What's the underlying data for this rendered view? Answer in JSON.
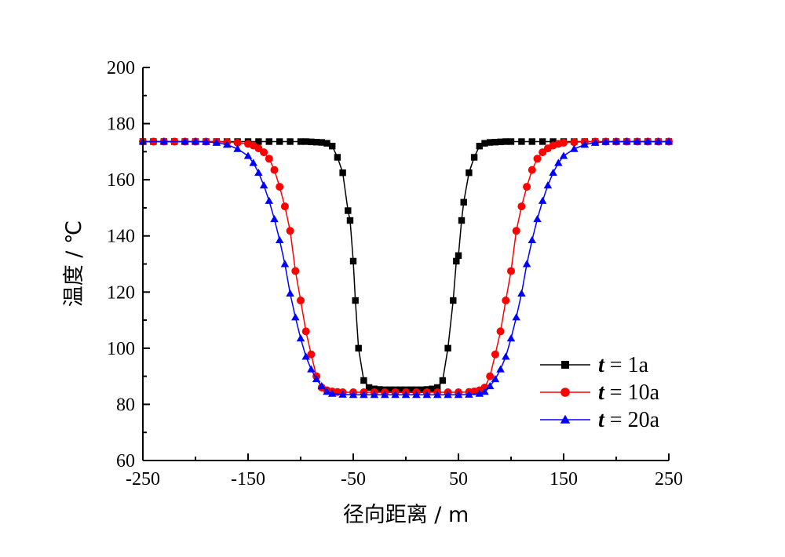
{
  "chart_data": {
    "type": "line",
    "title": "",
    "xlabel": "径向距离 / m",
    "ylabel": "温度 / ℃",
    "xlim": [
      -250,
      250
    ],
    "ylim": [
      60,
      200
    ],
    "xticks": [
      -250,
      -150,
      -50,
      50,
      150,
      250
    ],
    "xtick_labels": [
      "-250",
      "-150",
      "-50",
      "50",
      "150",
      "250"
    ],
    "yticks": [
      60,
      80,
      100,
      120,
      140,
      160,
      180,
      200
    ],
    "ytick_labels": [
      "60",
      "80",
      "100",
      "120",
      "140",
      "160",
      "180",
      "200"
    ],
    "x_minor_step": 50,
    "y_minor_step": 10,
    "grid": false,
    "legend_position": "right",
    "series": [
      {
        "name_var": "t",
        "name_rest": " = 1a",
        "color": "#000000",
        "marker": "square",
        "x": [
          -250,
          -240,
          -230,
          -220,
          -210,
          -200,
          -190,
          -180,
          -170,
          -160,
          -150,
          -140,
          -130,
          -120,
          -110,
          -100,
          -95,
          -90,
          -85,
          -80,
          -75,
          -70,
          -65,
          -60,
          -55,
          -53,
          -50,
          -48,
          -45,
          -40,
          -35,
          -30,
          -25,
          -20,
          -15,
          -10,
          -5,
          0,
          5,
          10,
          15,
          20,
          25,
          30,
          35,
          40,
          45,
          48,
          50,
          53,
          55,
          60,
          65,
          70,
          75,
          80,
          85,
          90,
          95,
          100,
          110,
          120,
          130,
          140,
          150,
          160,
          170,
          180,
          190,
          200,
          210,
          220,
          230,
          240,
          250
        ],
        "y": [
          173.6,
          173.6,
          173.6,
          173.6,
          173.6,
          173.6,
          173.6,
          173.6,
          173.6,
          173.6,
          173.6,
          173.6,
          173.6,
          173.6,
          173.6,
          173.6,
          173.6,
          173.5,
          173.4,
          173.3,
          173.0,
          172.0,
          168.0,
          162.5,
          149.0,
          145.5,
          131.0,
          117.0,
          100.0,
          88.5,
          86.0,
          85.5,
          85.3,
          85.2,
          85.2,
          85.2,
          85.2,
          85.2,
          85.2,
          85.2,
          85.2,
          85.3,
          85.5,
          86.0,
          88.5,
          100.0,
          117.0,
          131.0,
          133.0,
          145.5,
          152.0,
          162.5,
          168.0,
          172.0,
          173.0,
          173.3,
          173.4,
          173.5,
          173.6,
          173.6,
          173.6,
          173.6,
          173.6,
          173.6,
          173.6,
          173.6,
          173.6,
          173.6,
          173.6,
          173.6,
          173.6,
          173.6,
          173.6,
          173.6,
          173.6
        ]
      },
      {
        "name_var": "t",
        "name_rest": " = 10a",
        "color": "#ff0000",
        "marker": "circle",
        "x": [
          -250,
          -240,
          -230,
          -220,
          -210,
          -200,
          -190,
          -180,
          -170,
          -160,
          -150,
          -145,
          -140,
          -135,
          -130,
          -125,
          -120,
          -115,
          -110,
          -105,
          -100,
          -95,
          -90,
          -85,
          -80,
          -75,
          -70,
          -65,
          -60,
          -50,
          -40,
          -30,
          -20,
          -10,
          0,
          10,
          20,
          30,
          40,
          50,
          60,
          65,
          70,
          75,
          80,
          85,
          90,
          95,
          100,
          105,
          110,
          115,
          120,
          125,
          130,
          135,
          140,
          145,
          150,
          160,
          170,
          180,
          190,
          200,
          210,
          220,
          230,
          240,
          250
        ],
        "y": [
          173.6,
          173.6,
          173.6,
          173.6,
          173.6,
          173.6,
          173.6,
          173.5,
          173.4,
          173.2,
          172.8,
          172.2,
          171.2,
          169.8,
          167.5,
          163.5,
          157.5,
          150.5,
          141.8,
          127.5,
          117.0,
          106.0,
          97.8,
          90.0,
          86.0,
          85.0,
          84.6,
          84.4,
          84.3,
          84.3,
          84.3,
          84.3,
          84.3,
          84.3,
          84.3,
          84.3,
          84.3,
          84.3,
          84.3,
          84.3,
          84.4,
          84.6,
          85.0,
          86.0,
          90.0,
          97.8,
          106.0,
          117.0,
          127.5,
          141.8,
          150.5,
          157.5,
          163.5,
          167.5,
          169.8,
          171.2,
          172.2,
          172.8,
          173.2,
          173.4,
          173.5,
          173.6,
          173.6,
          173.6,
          173.6,
          173.6,
          173.6,
          173.6,
          173.6
        ]
      },
      {
        "name_var": "t",
        "name_rest": " = 20a",
        "color": "#0000ff",
        "marker": "triangle",
        "x": [
          -250,
          -230,
          -210,
          -200,
          -190,
          -180,
          -170,
          -160,
          -150,
          -145,
          -140,
          -135,
          -130,
          -125,
          -120,
          -115,
          -110,
          -105,
          -100,
          -95,
          -90,
          -85,
          -80,
          -75,
          -70,
          -60,
          -50,
          -40,
          -30,
          -20,
          -10,
          0,
          10,
          20,
          30,
          40,
          50,
          60,
          70,
          75,
          80,
          85,
          90,
          95,
          100,
          105,
          110,
          115,
          120,
          125,
          130,
          135,
          140,
          145,
          150,
          160,
          170,
          180,
          190,
          200,
          210,
          220,
          230,
          240,
          250
        ],
        "y": [
          173.6,
          173.6,
          173.6,
          173.6,
          173.5,
          173.2,
          172.5,
          171.0,
          168.5,
          166.0,
          162.5,
          158.0,
          152.5,
          146.0,
          138.5,
          130.0,
          119.5,
          111.0,
          103.5,
          97.0,
          92.5,
          89.0,
          86.5,
          84.5,
          83.8,
          83.5,
          83.4,
          83.4,
          83.4,
          83.4,
          83.4,
          83.4,
          83.4,
          83.4,
          83.4,
          83.4,
          83.4,
          83.5,
          83.8,
          84.5,
          86.5,
          89.0,
          92.5,
          97.0,
          103.5,
          111.0,
          119.5,
          130.0,
          138.5,
          146.0,
          152.5,
          158.0,
          162.5,
          166.0,
          168.5,
          171.0,
          172.5,
          173.2,
          173.5,
          173.6,
          173.6,
          173.6,
          173.6,
          173.6,
          173.6
        ]
      }
    ]
  }
}
